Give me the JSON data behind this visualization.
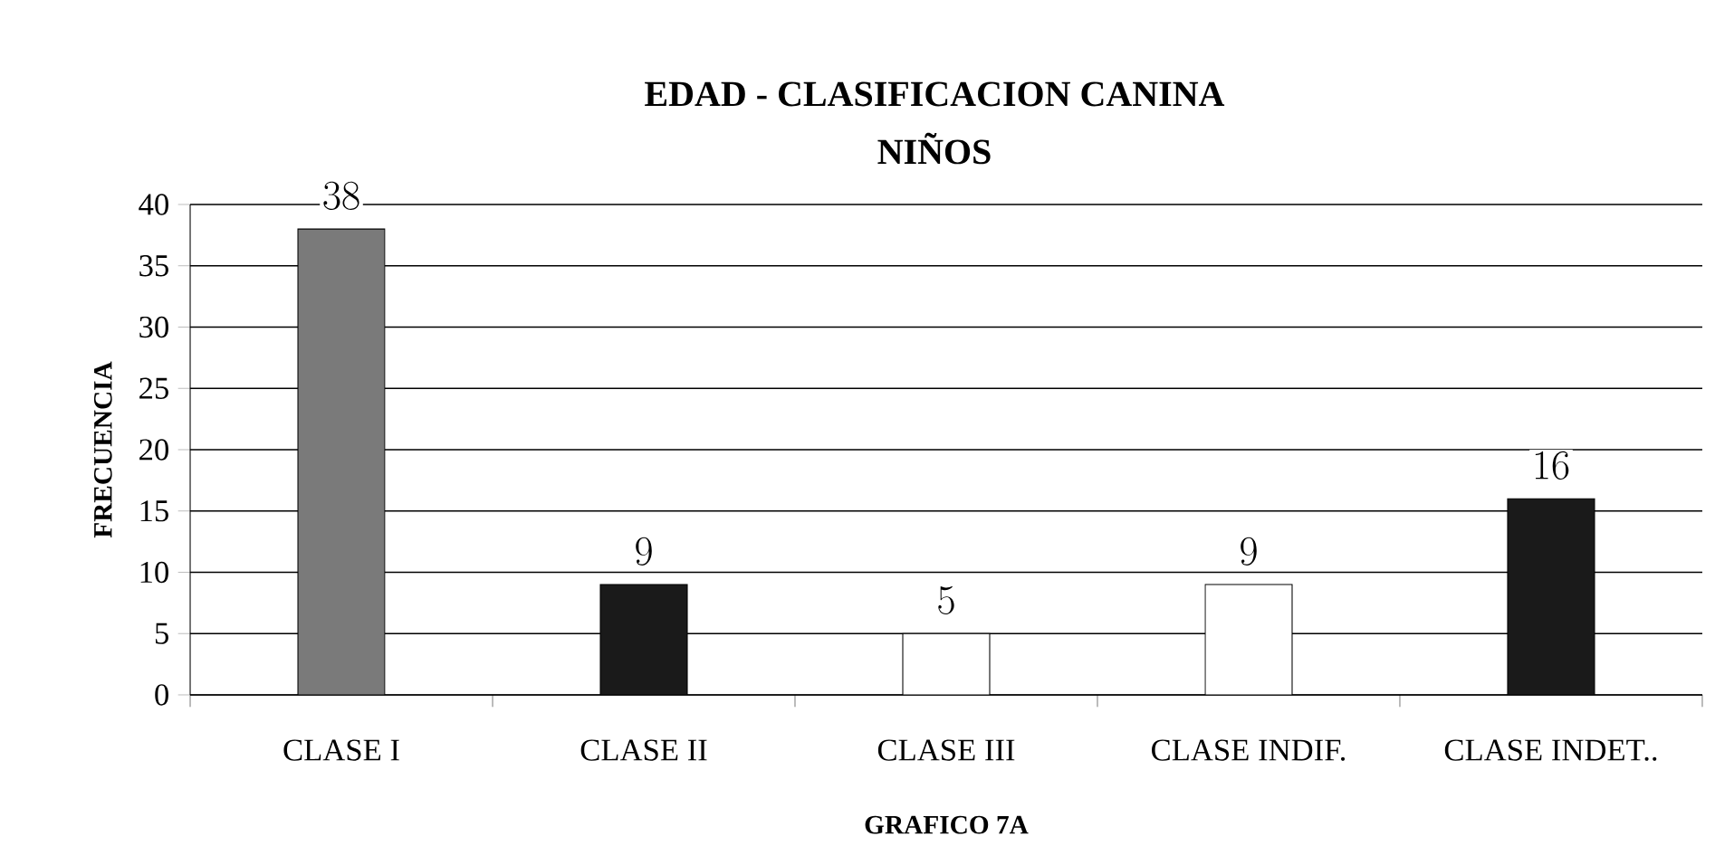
{
  "chart_data": {
    "type": "bar",
    "title": "EDAD - CLASIFICACION CANINA",
    "subtitle": "NIÑOS",
    "xlabel": "GRAFICO 7A",
    "ylabel": "FRECUENCIA",
    "categories": [
      "CLASE I",
      "CLASE II",
      "CLASE III",
      "CLASE INDIF.",
      "CLASE INDET.."
    ],
    "values": [
      38,
      9,
      5,
      9,
      16
    ],
    "colors": [
      "#7a7a7a",
      "#1a1a1a",
      "#ffffff",
      "#ffffff",
      "#1a1a1a"
    ],
    "ylim": [
      0,
      40
    ],
    "yticks": [
      0,
      5,
      10,
      15,
      20,
      25,
      30,
      35,
      40
    ],
    "grid": "y",
    "data_labels": true
  }
}
